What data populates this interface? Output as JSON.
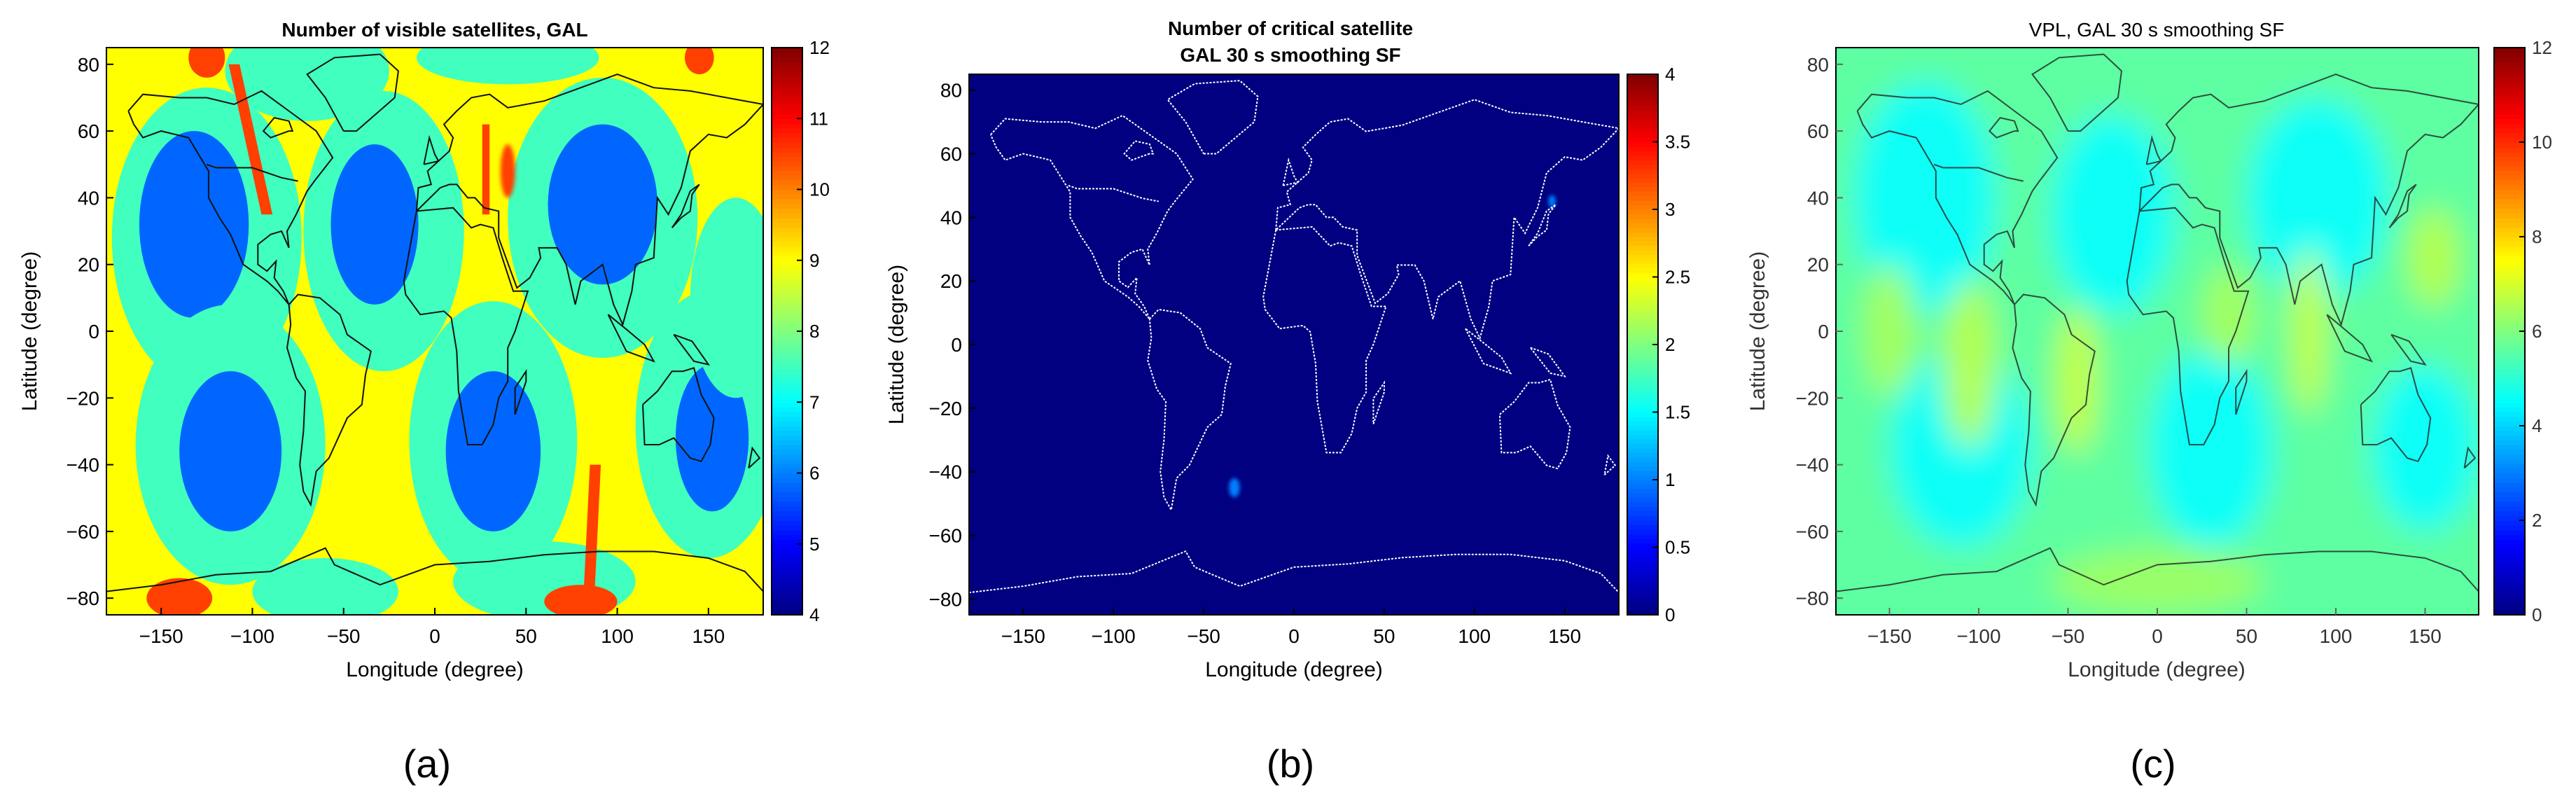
{
  "chart_data": [
    {
      "type": "heatmap",
      "panel_label": "(a)",
      "title": "Number of visible satellites, GAL",
      "xlabel": "Longitude (degree)",
      "ylabel": "Latitude (degree)",
      "xlim": [
        -180,
        180
      ],
      "ylim": [
        -85,
        85
      ],
      "xticks": [
        -150,
        -100,
        -50,
        0,
        50,
        100,
        150
      ],
      "xtick_labels": [
        "−150",
        "−100",
        "−50",
        "0",
        "50",
        "100",
        "150"
      ],
      "yticks": [
        -80,
        -60,
        -40,
        -20,
        0,
        20,
        40,
        60,
        80
      ],
      "ytick_labels": [
        "−80",
        "−60",
        "−40",
        "−20",
        "0",
        "20",
        "40",
        "60",
        "80"
      ],
      "colorbar": {
        "min": 4,
        "max": 12,
        "ticks": [
          4,
          5,
          6,
          7,
          8,
          9,
          10,
          11,
          12
        ],
        "tick_labels": [
          "4",
          "5",
          "6",
          "7",
          "8",
          "9",
          "10",
          "11",
          "12"
        ]
      },
      "background_value": 9,
      "regions": [
        {
          "value": 7.5,
          "lon": -125,
          "lat": 28,
          "rlon": 52,
          "rlat": 45
        },
        {
          "value": 5.8,
          "lon": -132,
          "lat": 32,
          "rlon": 30,
          "rlat": 28
        },
        {
          "value": 7.5,
          "lon": -28,
          "lat": 30,
          "rlon": 44,
          "rlat": 42
        },
        {
          "value": 5.8,
          "lon": -33,
          "lat": 32,
          "rlon": 24,
          "rlat": 24
        },
        {
          "value": 7.5,
          "lon": 92,
          "lat": 34,
          "rlon": 52,
          "rlat": 42
        },
        {
          "value": 5.8,
          "lon": 92,
          "lat": 38,
          "rlon": 30,
          "rlat": 24
        },
        {
          "value": 7.5,
          "lon": -112,
          "lat": -34,
          "rlon": 52,
          "rlat": 42
        },
        {
          "value": 5.8,
          "lon": -112,
          "lat": -36,
          "rlon": 28,
          "rlat": 24
        },
        {
          "value": 7.5,
          "lon": 32,
          "lat": -33,
          "rlon": 46,
          "rlat": 42
        },
        {
          "value": 5.8,
          "lon": 32,
          "lat": -36,
          "rlon": 26,
          "rlat": 24
        },
        {
          "value": 7.5,
          "lon": 150,
          "lat": -28,
          "rlon": 40,
          "rlat": 40
        },
        {
          "value": 5.8,
          "lon": 152,
          "lat": -32,
          "rlon": 20,
          "rlat": 22
        },
        {
          "value": 7.5,
          "lon": -70,
          "lat": 78,
          "rlon": 45,
          "rlat": 15
        },
        {
          "value": 7.5,
          "lon": 40,
          "lat": 82,
          "rlon": 50,
          "rlat": 8
        },
        {
          "value": 7.5,
          "lon": 60,
          "lat": -75,
          "rlon": 50,
          "rlat": 12
        },
        {
          "value": 7.5,
          "lon": -60,
          "lat": -78,
          "rlon": 40,
          "rlat": 10
        },
        {
          "value": 7.5,
          "lon": 165,
          "lat": 10,
          "rlon": 25,
          "rlat": 30
        },
        {
          "value": 10.5,
          "lon": -125,
          "lat": 82,
          "rlon": 10,
          "rlat": 6
        },
        {
          "value": 10.5,
          "lon": 145,
          "lat": 82,
          "rlon": 8,
          "rlat": 5
        },
        {
          "value": 10.5,
          "lon": -140,
          "lat": -80,
          "rlon": 18,
          "rlat": 6
        },
        {
          "value": 10.5,
          "lon": 80,
          "lat": -81,
          "rlon": 20,
          "rlat": 5
        },
        {
          "value": 10.5,
          "lon": 40,
          "lat": 48,
          "rlon": 4,
          "rlat": 8
        }
      ],
      "stripes": [
        {
          "value": 10.5,
          "lon_top": -110,
          "lon_bottom": -92,
          "lat_top": 80,
          "lat_bottom": 35,
          "width": 6
        },
        {
          "value": 10.5,
          "lon_top": 88,
          "lon_bottom": 84,
          "lat_top": -40,
          "lat_bottom": -85,
          "width": 6
        },
        {
          "value": 10.5,
          "lon_top": 28,
          "lon_bottom": 28,
          "lat_top": 62,
          "lat_bottom": 35,
          "width": 4
        }
      ]
    },
    {
      "type": "heatmap",
      "panel_label": "(b)",
      "title": "Number of critical satellite",
      "subtitle": "GAL 30 s smoothing SF",
      "xlabel": "Longitude (degree)",
      "ylabel": "Latitude (degree)",
      "xlim": [
        -180,
        180
      ],
      "ylim": [
        -85,
        85
      ],
      "xticks": [
        -150,
        -100,
        -50,
        0,
        50,
        100,
        150
      ],
      "xtick_labels": [
        "−150",
        "−100",
        "−50",
        "0",
        "50",
        "100",
        "150"
      ],
      "yticks": [
        -80,
        -60,
        -40,
        -20,
        0,
        20,
        40,
        60,
        80
      ],
      "ytick_labels": [
        "−80",
        "−60",
        "−40",
        "−20",
        "0",
        "20",
        "40",
        "60",
        "80"
      ],
      "colorbar": {
        "min": 0,
        "max": 4,
        "ticks": [
          0,
          0.5,
          1,
          1.5,
          2,
          2.5,
          3,
          3.5,
          4
        ],
        "tick_labels": [
          "0",
          "0.5",
          "1",
          "1.5",
          "2",
          "2.5",
          "3",
          "3.5",
          "4"
        ]
      },
      "background_value": 0,
      "regions": [
        {
          "value": 1,
          "lon": -33,
          "lat": -45,
          "rlon": 3,
          "rlat": 3
        },
        {
          "value": 1,
          "lon": 143,
          "lat": 45,
          "rlon": 2,
          "rlat": 2
        }
      ],
      "stripes": []
    },
    {
      "type": "heatmap",
      "panel_label": "(c)",
      "title": "VPL, GAL 30 s smoothing SF",
      "xlabel": "Longitude (degree)",
      "ylabel": "Latitude (degree)",
      "xlim": [
        -180,
        180
      ],
      "ylim": [
        -85,
        85
      ],
      "xticks": [
        -150,
        -100,
        -50,
        0,
        50,
        100,
        150
      ],
      "xtick_labels": [
        "−150",
        "−100",
        "−50",
        "0",
        "50",
        "100",
        "150"
      ],
      "yticks": [
        -80,
        -60,
        -40,
        -20,
        0,
        20,
        40,
        60,
        80
      ],
      "ytick_labels": [
        "−80",
        "−60",
        "−40",
        "−20",
        "0",
        "20",
        "40",
        "60",
        "80"
      ],
      "colorbar": {
        "min": 0,
        "max": 12,
        "ticks": [
          0,
          2,
          4,
          6,
          8,
          10,
          12
        ],
        "tick_labels": [
          "0",
          "2",
          "4",
          "6",
          "8",
          "10",
          "12"
        ]
      },
      "background_value": 5.6,
      "regions": [
        {
          "value": 4.6,
          "lon": -130,
          "lat": 40,
          "rlon": 40,
          "rlat": 35
        },
        {
          "value": 4.6,
          "lon": -25,
          "lat": 35,
          "rlon": 35,
          "rlat": 30
        },
        {
          "value": 4.6,
          "lon": 90,
          "lat": 40,
          "rlon": 40,
          "rlat": 30
        },
        {
          "value": 4.6,
          "lon": -110,
          "lat": -35,
          "rlon": 40,
          "rlat": 30
        },
        {
          "value": 4.6,
          "lon": 30,
          "lat": -35,
          "rlon": 35,
          "rlat": 30
        },
        {
          "value": 4.6,
          "lon": 150,
          "lat": -35,
          "rlon": 30,
          "rlat": 25
        },
        {
          "value": 6.6,
          "lon": -105,
          "lat": -10,
          "rlon": 15,
          "rlat": 25
        },
        {
          "value": 6.8,
          "lon": -45,
          "lat": -15,
          "rlon": 12,
          "rlat": 22
        },
        {
          "value": 6.8,
          "lon": 85,
          "lat": 0,
          "rlon": 10,
          "rlat": 25
        },
        {
          "value": 6.6,
          "lon": 155,
          "lat": 22,
          "rlon": 15,
          "rlat": 15
        },
        {
          "value": 6.4,
          "lon": -150,
          "lat": 0,
          "rlon": 15,
          "rlat": 20
        },
        {
          "value": 6.4,
          "lon": 40,
          "lat": 5,
          "rlon": 15,
          "rlat": 15
        },
        {
          "value": 6.3,
          "lon": 0,
          "lat": -75,
          "rlon": 60,
          "rlat": 10
        }
      ],
      "stripes": []
    }
  ]
}
